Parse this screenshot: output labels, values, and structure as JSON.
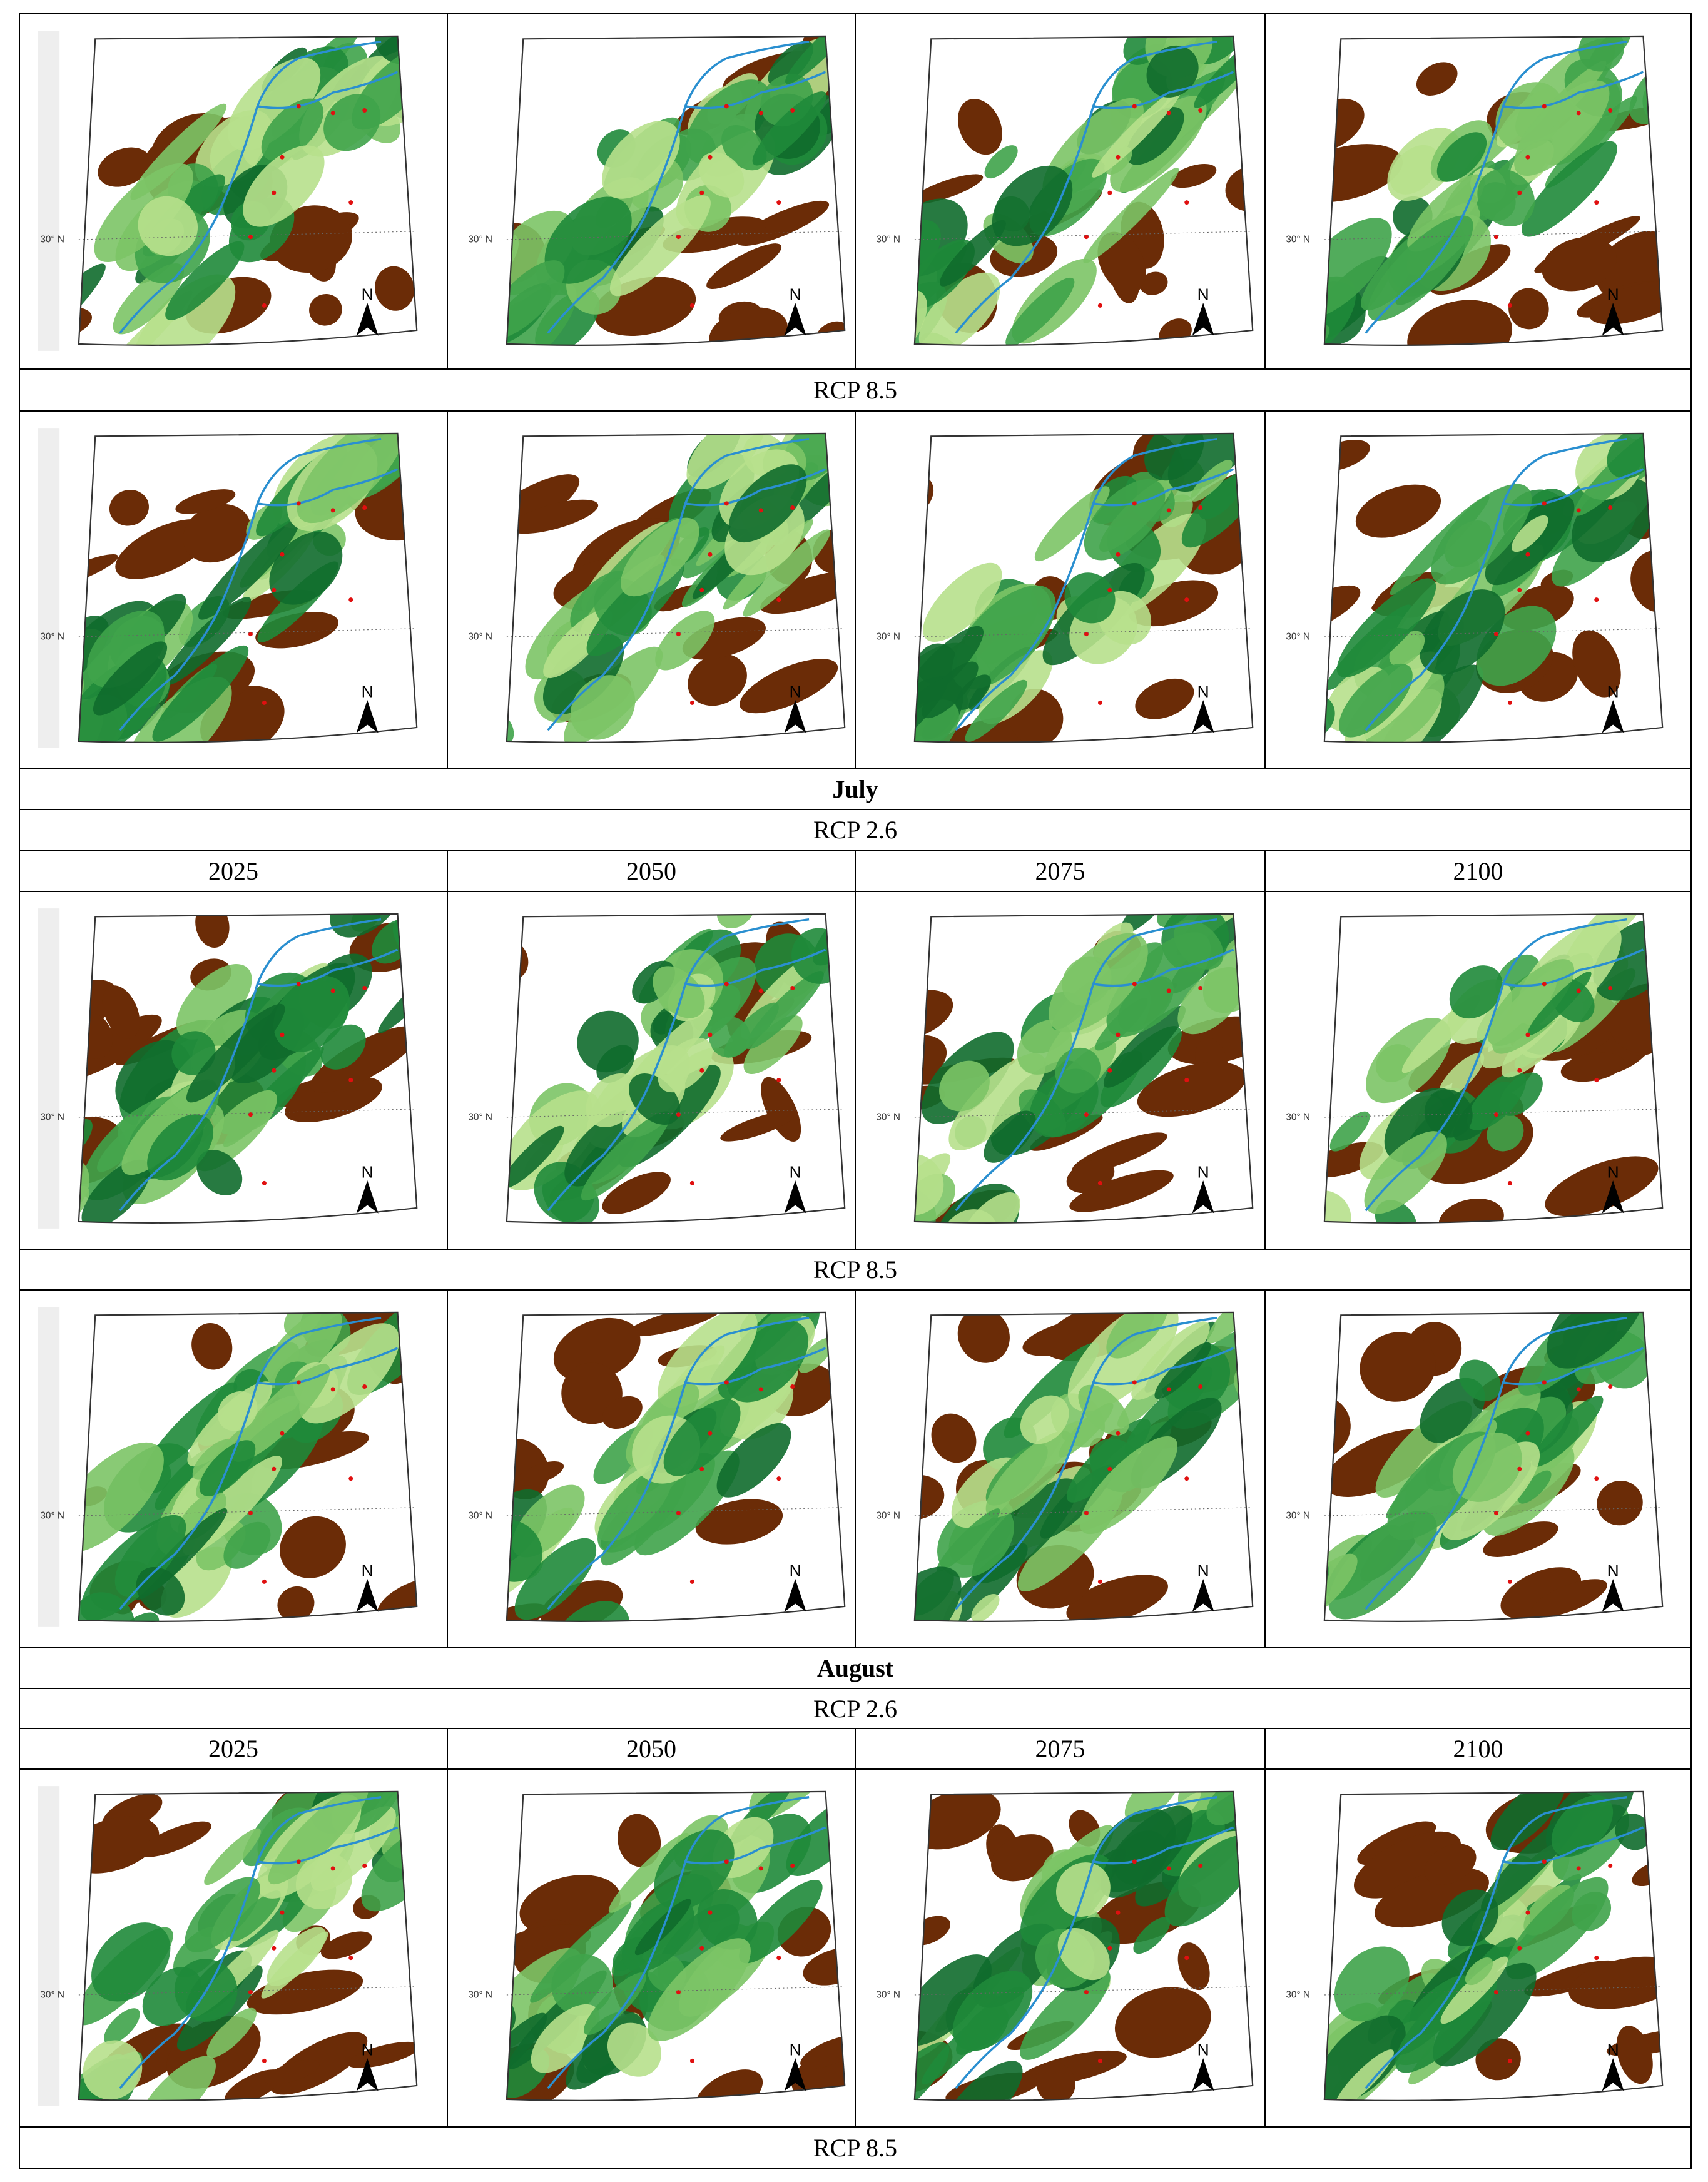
{
  "map_labels": {
    "latitude": "30° N",
    "north": "N"
  },
  "table": {
    "rows": [
      "RCP 8.5",
      "July",
      "RCP 2.6",
      [
        "2025",
        "2050",
        "2075",
        "2100"
      ],
      "RCP 8.5",
      "August",
      "RCP 2.6",
      [
        "2025",
        "2050",
        "2075",
        "2100"
      ],
      "RCP 8.5"
    ]
  }
}
